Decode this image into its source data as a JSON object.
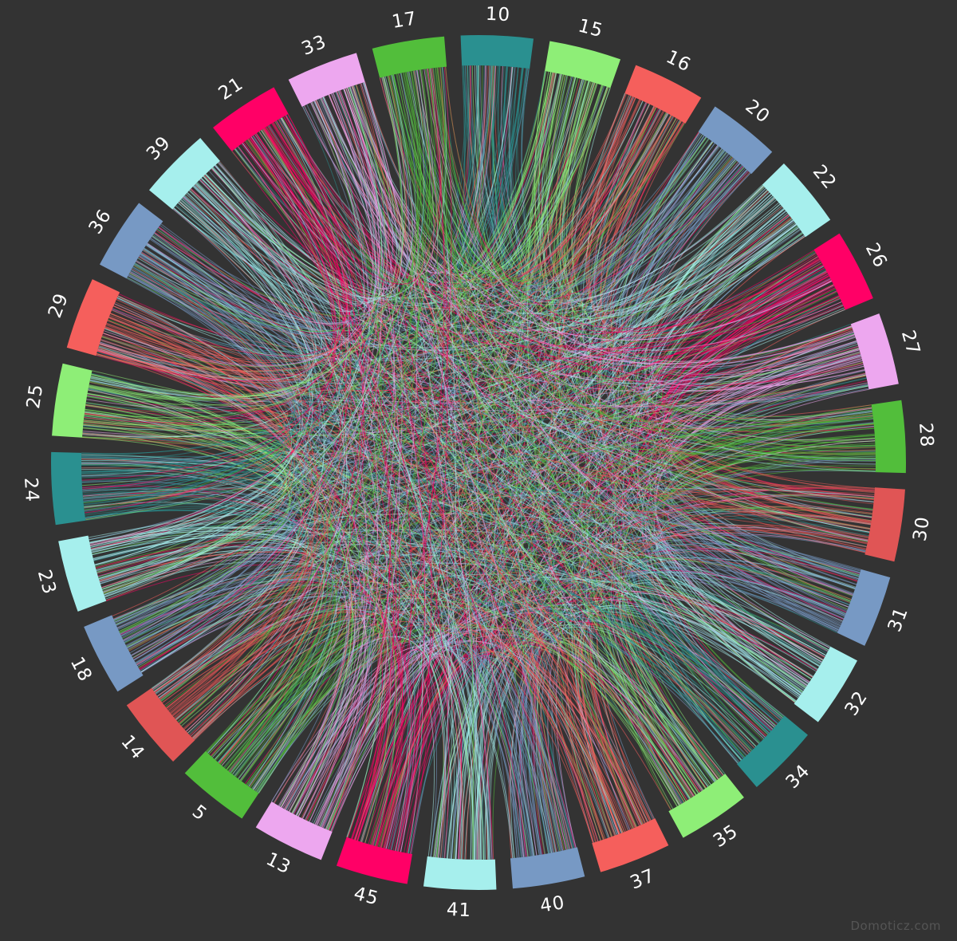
{
  "watermark": "Domoticz.com",
  "nodes": [
    {
      "label": "10",
      "color": "#2a9090"
    },
    {
      "label": "15",
      "color": "#8eee77"
    },
    {
      "label": "16",
      "color": "#f55f5c"
    },
    {
      "label": "20",
      "color": "#7799c4"
    },
    {
      "label": "22",
      "color": "#a6efed"
    },
    {
      "label": "26",
      "color": "#ff0066"
    },
    {
      "label": "27",
      "color": "#eda7ef"
    },
    {
      "label": "28",
      "color": "#52be3b"
    },
    {
      "label": "30",
      "color": "#e05555"
    },
    {
      "label": "31",
      "color": "#7799c4"
    },
    {
      "label": "32",
      "color": "#a6efed"
    },
    {
      "label": "34",
      "color": "#2a9090"
    },
    {
      "label": "35",
      "color": "#8eee77"
    },
    {
      "label": "37",
      "color": "#f55f5c"
    },
    {
      "label": "40",
      "color": "#7799c4"
    },
    {
      "label": "41",
      "color": "#a6efed"
    },
    {
      "label": "45",
      "color": "#ff0066"
    },
    {
      "label": "13",
      "color": "#eda7ef"
    },
    {
      "label": "5",
      "color": "#52be3b"
    },
    {
      "label": "14",
      "color": "#e05555"
    },
    {
      "label": "18",
      "color": "#7799c4"
    },
    {
      "label": "23",
      "color": "#a6efed"
    },
    {
      "label": "24",
      "color": "#2a9090"
    },
    {
      "label": "25",
      "color": "#8eee77"
    },
    {
      "label": "29",
      "color": "#f55f5c"
    },
    {
      "label": "36",
      "color": "#7799c4"
    },
    {
      "label": "39",
      "color": "#a6efed"
    },
    {
      "label": "21",
      "color": "#ff0066"
    },
    {
      "label": "33",
      "color": "#eda7ef"
    },
    {
      "label": "17",
      "color": "#52be3b"
    }
  ]
}
